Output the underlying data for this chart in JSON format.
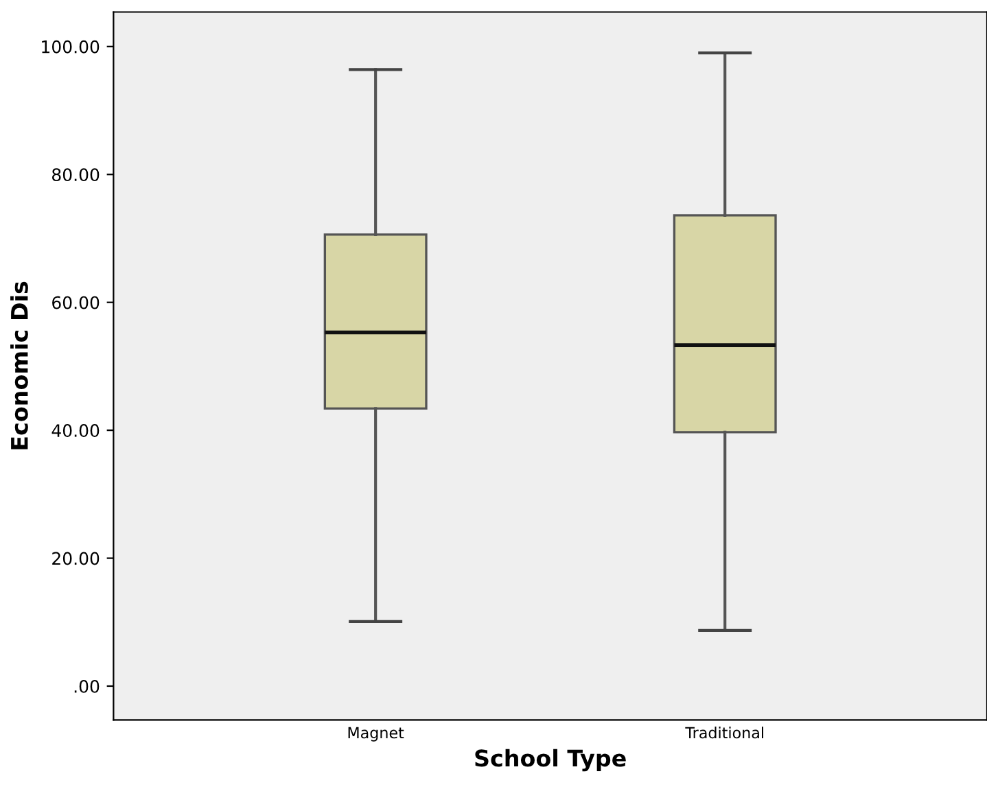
{
  "chart_data": {
    "type": "box",
    "xlabel": "School Type",
    "ylabel": "Economic Dis",
    "categories": [
      "Magnet",
      "Traditional"
    ],
    "series": [
      {
        "color": "#d8d6a6",
        "boxes": [
          {
            "low": 10.1,
            "q1": 43.4,
            "median": 55.3,
            "q3": 70.6,
            "high": 96.4
          },
          {
            "low": 8.7,
            "q1": 39.7,
            "median": 53.3,
            "q3": 73.6,
            "high": 99.0
          }
        ]
      }
    ],
    "ylim": [
      -5.3,
      105.4
    ],
    "yticks": [
      {
        "value": 0,
        "label": ".00"
      },
      {
        "value": 20,
        "label": "20.00"
      },
      {
        "value": 40,
        "label": "40.00"
      },
      {
        "value": 60,
        "label": "60.00"
      },
      {
        "value": 80,
        "label": "80.00"
      },
      {
        "value": 100,
        "label": "100.00"
      }
    ],
    "grid": false,
    "legend": false
  }
}
